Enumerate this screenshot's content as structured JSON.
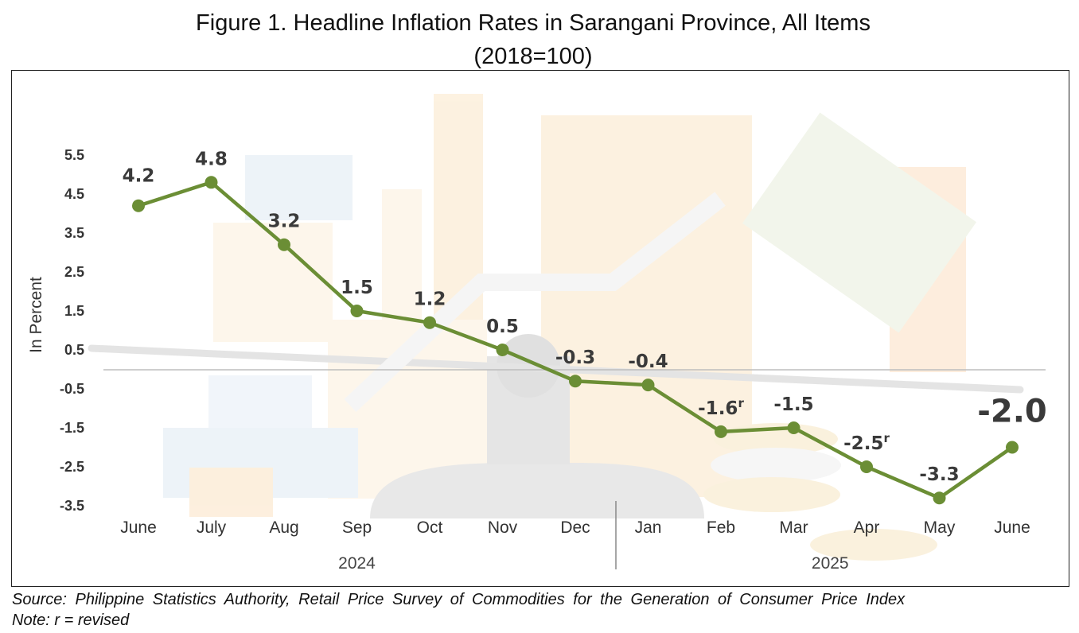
{
  "title_line1": "Figure 1. Headline Inflation Rates in Sarangani Province, All Items",
  "title_line2": "(2018=100)",
  "source": "Source: Philippine Statistics Authority, Retail Price Survey of Commodities for the Generation of Consumer Price Index",
  "note": "Note:  r = revised",
  "chart_data": {
    "type": "line",
    "title": "Figure 1. Headline Inflation Rates in Sarangani Province, All Items (2018=100)",
    "ylabel": "In Percent",
    "xlabel": "",
    "ylim": [
      -3.5,
      5.5
    ],
    "yticks": [
      "5.5",
      "4.5",
      "3.5",
      "2.5",
      "1.5",
      "0.5",
      "-0.5",
      "-1.5",
      "-2.5",
      "-3.5"
    ],
    "grid": false,
    "categories": [
      "June",
      "July",
      "Aug",
      "Sep",
      "Oct",
      "Nov",
      "Dec",
      "Jan",
      "Feb",
      "Mar",
      "Apr",
      "May",
      "June"
    ],
    "year_groups": [
      {
        "label": "2024",
        "months": 7
      },
      {
        "label": "2025",
        "months": 6
      }
    ],
    "series": [
      {
        "values": [
          4.2,
          4.8,
          3.2,
          1.5,
          1.2,
          0.5,
          -0.3,
          -0.4,
          -1.6,
          -1.5,
          -2.5,
          -3.3,
          -2.0
        ],
        "labels": [
          "4.2",
          "4.8",
          "3.2",
          "1.5",
          "1.2",
          "0.5",
          "-0.3",
          "-0.4",
          "-1.6",
          "-1.5",
          "-2.5",
          "-3.3",
          "-2.0"
        ],
        "revised": [
          false,
          false,
          false,
          false,
          false,
          false,
          false,
          false,
          true,
          false,
          true,
          false,
          false
        ],
        "revised_mark": "r",
        "color": "#6b8e35"
      }
    ]
  }
}
